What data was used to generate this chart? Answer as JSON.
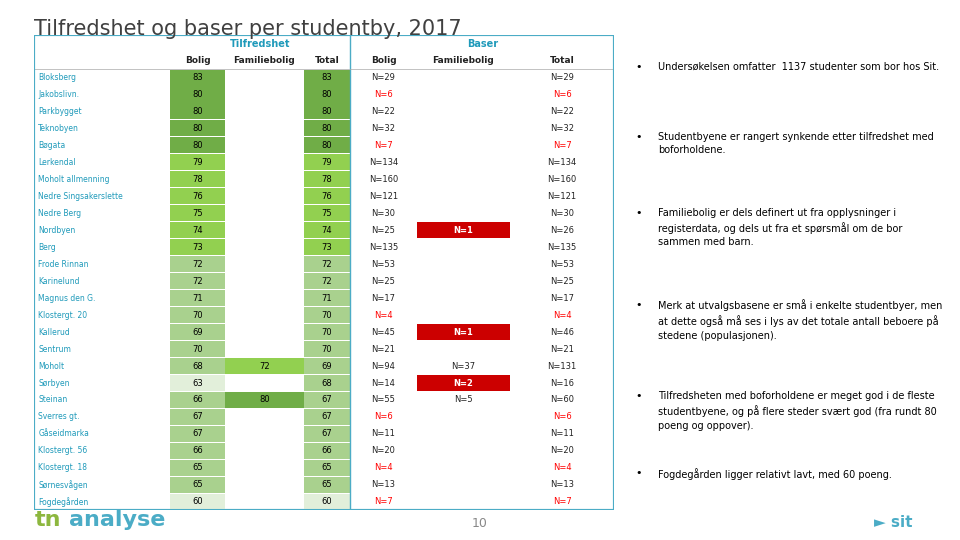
{
  "title": "Tilfredshet og baser per studentby, 2017",
  "title_color": "#404040",
  "table_border_color": "#4bacc6",
  "header_tilfredshet": "Tilfredshet",
  "header_baser": "Baser",
  "rows": [
    {
      "name": "Bloksberg",
      "t_bolig": 83,
      "t_fam": null,
      "t_tot": 83,
      "b_bolig": "N=29",
      "b_fam": "",
      "b_tot": "N=29",
      "t_bolig_color": "#70ad47",
      "t_fam_color": null,
      "t_tot_color": "#70ad47",
      "b_bolig_red": false,
      "b_tot_red": false,
      "b_fam_bg": null
    },
    {
      "name": "Jakobslivn.",
      "t_bolig": 80,
      "t_fam": null,
      "t_tot": 80,
      "b_bolig": "N=6",
      "b_fam": "",
      "b_tot": "N=6",
      "t_bolig_color": "#70ad47",
      "t_fam_color": null,
      "t_tot_color": "#70ad47",
      "b_bolig_red": true,
      "b_tot_red": true,
      "b_fam_bg": null
    },
    {
      "name": "Parkbygget",
      "t_bolig": 80,
      "t_fam": null,
      "t_tot": 80,
      "b_bolig": "N=22",
      "b_fam": "",
      "b_tot": "N=22",
      "t_bolig_color": "#70ad47",
      "t_fam_color": null,
      "t_tot_color": "#70ad47",
      "b_bolig_red": false,
      "b_tot_red": false,
      "b_fam_bg": null
    },
    {
      "name": "Teknobyen",
      "t_bolig": 80,
      "t_fam": null,
      "t_tot": 80,
      "b_bolig": "N=32",
      "b_fam": "",
      "b_tot": "N=32",
      "t_bolig_color": "#70ad47",
      "t_fam_color": null,
      "t_tot_color": "#70ad47",
      "b_bolig_red": false,
      "b_tot_red": false,
      "b_fam_bg": null
    },
    {
      "name": "Bøgata",
      "t_bolig": 80,
      "t_fam": null,
      "t_tot": 80,
      "b_bolig": "N=7",
      "b_fam": "",
      "b_tot": "N=7",
      "t_bolig_color": "#70ad47",
      "t_fam_color": null,
      "t_tot_color": "#70ad47",
      "b_bolig_red": true,
      "b_tot_red": true,
      "b_fam_bg": null
    },
    {
      "name": "Lerkendal",
      "t_bolig": 79,
      "t_fam": null,
      "t_tot": 79,
      "b_bolig": "N=134",
      "b_fam": "",
      "b_tot": "N=134",
      "t_bolig_color": "#92d050",
      "t_fam_color": null,
      "t_tot_color": "#92d050",
      "b_bolig_red": false,
      "b_tot_red": false,
      "b_fam_bg": null
    },
    {
      "name": "Moholt allmenning",
      "t_bolig": 78,
      "t_fam": null,
      "t_tot": 78,
      "b_bolig": "N=160",
      "b_fam": "",
      "b_tot": "N=160",
      "t_bolig_color": "#92d050",
      "t_fam_color": null,
      "t_tot_color": "#92d050",
      "b_bolig_red": false,
      "b_tot_red": false,
      "b_fam_bg": null
    },
    {
      "name": "Nedre Singsakerslette",
      "t_bolig": 76,
      "t_fam": null,
      "t_tot": 76,
      "b_bolig": "N=121",
      "b_fam": "",
      "b_tot": "N=121",
      "t_bolig_color": "#92d050",
      "t_fam_color": null,
      "t_tot_color": "#92d050",
      "b_bolig_red": false,
      "b_tot_red": false,
      "b_fam_bg": null
    },
    {
      "name": "Nedre Berg",
      "t_bolig": 75,
      "t_fam": null,
      "t_tot": 75,
      "b_bolig": "N=30",
      "b_fam": "",
      "b_tot": "N=30",
      "t_bolig_color": "#92d050",
      "t_fam_color": null,
      "t_tot_color": "#92d050",
      "b_bolig_red": false,
      "b_tot_red": false,
      "b_fam_bg": null
    },
    {
      "name": "Nordbyen",
      "t_bolig": 74,
      "t_fam": null,
      "t_tot": 74,
      "b_bolig": "N=25",
      "b_fam": "N=1",
      "b_tot": "N=26",
      "t_bolig_color": "#92d050",
      "t_fam_color": null,
      "t_tot_color": "#92d050",
      "b_bolig_red": false,
      "b_tot_red": false,
      "b_fam_bg": "#cc0000"
    },
    {
      "name": "Berg",
      "t_bolig": 73,
      "t_fam": null,
      "t_tot": 73,
      "b_bolig": "N=135",
      "b_fam": "",
      "b_tot": "N=135",
      "t_bolig_color": "#92d050",
      "t_fam_color": null,
      "t_tot_color": "#92d050",
      "b_bolig_red": false,
      "b_tot_red": false,
      "b_fam_bg": null
    },
    {
      "name": "Frode Rinnan",
      "t_bolig": 72,
      "t_fam": null,
      "t_tot": 72,
      "b_bolig": "N=53",
      "b_fam": "",
      "b_tot": "N=53",
      "t_bolig_color": "#a9d18e",
      "t_fam_color": null,
      "t_tot_color": "#a9d18e",
      "b_bolig_red": false,
      "b_tot_red": false,
      "b_fam_bg": null
    },
    {
      "name": "Karinelund",
      "t_bolig": 72,
      "t_fam": null,
      "t_tot": 72,
      "b_bolig": "N=25",
      "b_fam": "",
      "b_tot": "N=25",
      "t_bolig_color": "#a9d18e",
      "t_fam_color": null,
      "t_tot_color": "#a9d18e",
      "b_bolig_red": false,
      "b_tot_red": false,
      "b_fam_bg": null
    },
    {
      "name": "Magnus den G.",
      "t_bolig": 71,
      "t_fam": null,
      "t_tot": 71,
      "b_bolig": "N=17",
      "b_fam": "",
      "b_tot": "N=17",
      "t_bolig_color": "#a9d18e",
      "t_fam_color": null,
      "t_tot_color": "#a9d18e",
      "b_bolig_red": false,
      "b_tot_red": false,
      "b_fam_bg": null
    },
    {
      "name": "Klostergt. 20",
      "t_bolig": 70,
      "t_fam": null,
      "t_tot": 70,
      "b_bolig": "N=4",
      "b_fam": "",
      "b_tot": "N=4",
      "t_bolig_color": "#a9d18e",
      "t_fam_color": null,
      "t_tot_color": "#a9d18e",
      "b_bolig_red": true,
      "b_tot_red": true,
      "b_fam_bg": null
    },
    {
      "name": "Kallerud",
      "t_bolig": 69,
      "t_fam": null,
      "t_tot": 70,
      "b_bolig": "N=45",
      "b_fam": "N=1",
      "b_tot": "N=46",
      "t_bolig_color": "#a9d18e",
      "t_fam_color": null,
      "t_tot_color": "#a9d18e",
      "b_bolig_red": false,
      "b_tot_red": false,
      "b_fam_bg": "#cc0000"
    },
    {
      "name": "Sentrum",
      "t_bolig": 70,
      "t_fam": null,
      "t_tot": 70,
      "b_bolig": "N=21",
      "b_fam": "",
      "b_tot": "N=21",
      "t_bolig_color": "#a9d18e",
      "t_fam_color": null,
      "t_tot_color": "#a9d18e",
      "b_bolig_red": false,
      "b_tot_red": false,
      "b_fam_bg": null
    },
    {
      "name": "Moholt",
      "t_bolig": 68,
      "t_fam": 72,
      "t_tot": 69,
      "b_bolig": "N=94",
      "b_fam": "N=37",
      "b_tot": "N=131",
      "t_bolig_color": "#a9d18e",
      "t_fam_color": "#92d050",
      "t_tot_color": "#a9d18e",
      "b_bolig_red": false,
      "b_tot_red": false,
      "b_fam_bg": null
    },
    {
      "name": "Sørbyen",
      "t_bolig": 63,
      "t_fam": null,
      "t_tot": 68,
      "b_bolig": "N=14",
      "b_fam": "N=2",
      "b_tot": "N=16",
      "t_bolig_color": "#e2efda",
      "t_fam_color": null,
      "t_tot_color": "#a9d18e",
      "b_bolig_red": false,
      "b_tot_red": false,
      "b_fam_bg": "#cc0000"
    },
    {
      "name": "Steinan",
      "t_bolig": 66,
      "t_fam": 80,
      "t_tot": 67,
      "b_bolig": "N=55",
      "b_fam": "N=5",
      "b_tot": "N=60",
      "t_bolig_color": "#a9d18e",
      "t_fam_color": "#70ad47",
      "t_tot_color": "#a9d18e",
      "b_bolig_red": false,
      "b_tot_red": false,
      "b_fam_bg": null
    },
    {
      "name": "Sverres gt.",
      "t_bolig": 67,
      "t_fam": null,
      "t_tot": 67,
      "b_bolig": "N=6",
      "b_fam": "",
      "b_tot": "N=6",
      "t_bolig_color": "#a9d18e",
      "t_fam_color": null,
      "t_tot_color": "#a9d18e",
      "b_bolig_red": true,
      "b_tot_red": true,
      "b_fam_bg": null
    },
    {
      "name": "Gåseidmarka",
      "t_bolig": 67,
      "t_fam": null,
      "t_tot": 67,
      "b_bolig": "N=11",
      "b_fam": "",
      "b_tot": "N=11",
      "t_bolig_color": "#a9d18e",
      "t_fam_color": null,
      "t_tot_color": "#a9d18e",
      "b_bolig_red": false,
      "b_tot_red": false,
      "b_fam_bg": null
    },
    {
      "name": "Klostergt. 56",
      "t_bolig": 66,
      "t_fam": null,
      "t_tot": 66,
      "b_bolig": "N=20",
      "b_fam": "",
      "b_tot": "N=20",
      "t_bolig_color": "#a9d18e",
      "t_fam_color": null,
      "t_tot_color": "#a9d18e",
      "b_bolig_red": false,
      "b_tot_red": false,
      "b_fam_bg": null
    },
    {
      "name": "Klostergt. 18",
      "t_bolig": 65,
      "t_fam": null,
      "t_tot": 65,
      "b_bolig": "N=4",
      "b_fam": "",
      "b_tot": "N=4",
      "t_bolig_color": "#a9d18e",
      "t_fam_color": null,
      "t_tot_color": "#a9d18e",
      "b_bolig_red": true,
      "b_tot_red": true,
      "b_fam_bg": null
    },
    {
      "name": "Sørnesvågen",
      "t_bolig": 65,
      "t_fam": null,
      "t_tot": 65,
      "b_bolig": "N=13",
      "b_fam": "",
      "b_tot": "N=13",
      "t_bolig_color": "#a9d18e",
      "t_fam_color": null,
      "t_tot_color": "#a9d18e",
      "b_bolig_red": false,
      "b_tot_red": false,
      "b_fam_bg": null
    },
    {
      "name": "Fogdegården",
      "t_bolig": 60,
      "t_fam": null,
      "t_tot": 60,
      "b_bolig": "N=7",
      "b_fam": "",
      "b_tot": "N=7",
      "t_bolig_color": "#e2efda",
      "t_fam_color": null,
      "t_tot_color": "#e2efda",
      "b_bolig_red": true,
      "b_tot_red": true,
      "b_fam_bg": null
    }
  ],
  "bullet_points": [
    "Undersøkelsen omfatter  1137 studenter som bor hos Sit.",
    "Studentbyene er rangert synkende etter tilfredshet med\nboforholdene.",
    "Familiebolig er dels definert ut fra opplysninger i\nregisterdata, og dels ut fra et spørsmål om de bor\nsammen med barn.",
    "Merk at utvalgsbasene er små i enkelte studentbyer, men\nat dette også må ses i lys av det totale antall beboere på\nstedene (populasjonen).",
    "Tilfredsheten med boforholdene er meget god i de fleste\nstudentbyene, og på flere steder svært god (fra rundt 80\npoeng og oppover).",
    "Fogdegården ligger relativt lavt, med 60 poeng."
  ],
  "row_name_color": "#1f9aba",
  "red_text_color": "#ff0000",
  "header_color": "#1f9aba",
  "footer_page": "10",
  "tn_color_t": "#8db73f",
  "tn_color_n": "#4bacc6"
}
